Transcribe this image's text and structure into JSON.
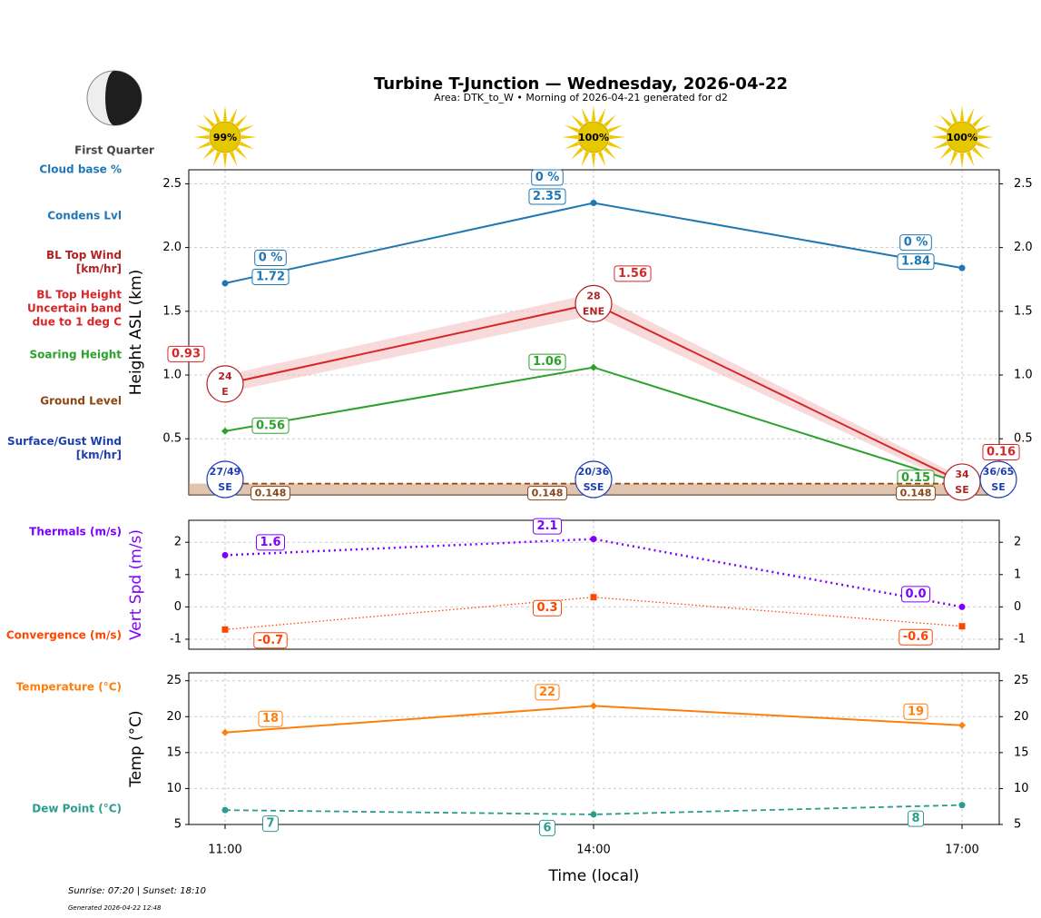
{
  "title": "Turbine T-Junction — Wednesday, 2026-04-22",
  "subtitle": "Area: DTK_to_W • Morning of 2026-04-21 generated for d2",
  "moon_phase": "First Quarter",
  "sun_percent": {
    "values": [
      99,
      100,
      100
    ],
    "value_labels": [
      "99%",
      "100%",
      "100%"
    ]
  },
  "footer": [
    "Sunrise: 07:20 | Sunset: 18:10",
    "Generated 2026-04-22 12:48"
  ],
  "chart_data": [
    {
      "type": "line",
      "y_label": "Height ASL (km)",
      "ylim": [
        0.06,
        2.61
      ],
      "yticks": [
        0.5,
        {
          "value": 1,
          "label": "1.0"
        },
        1.5,
        {
          "value": 2,
          "label": "2.0"
        },
        2.5
      ],
      "grid": true,
      "series": [
        {
          "name": "Cloud base %",
          "style": "labels",
          "color": "#1f77b4",
          "values": [
            0,
            0,
            0
          ],
          "value_labels": [
            "0 %",
            "0 %",
            "0 %"
          ]
        },
        {
          "name": "Condens Lvl",
          "style": "line",
          "linestyle": "solid",
          "marker": "o",
          "color": "#1f77b4",
          "values": [
            1.72,
            2.35,
            1.84
          ]
        },
        {
          "name": "BL Top Wind\n[km/hr]",
          "style": "wind",
          "color": "#b22222",
          "values": [
            24,
            28,
            34
          ],
          "directions": [
            "E",
            "ENE",
            "SE"
          ]
        },
        {
          "name": "BL Top Height\nUncertain band\ndue to 1 deg C",
          "style": "line",
          "linestyle": "solid",
          "marker": "none",
          "color": "#d62728",
          "values": [
            0.93,
            1.56,
            0.16
          ],
          "band_lower": [
            0.86,
            1.47,
            0.12
          ],
          "band_upper": [
            1.0,
            1.64,
            0.2
          ]
        },
        {
          "name": "Soaring Height",
          "style": "line",
          "linestyle": "solid",
          "marker": "D",
          "color": "#2ca02c",
          "values": [
            0.56,
            1.06,
            0.15
          ]
        },
        {
          "name": "Ground Level",
          "style": "ground",
          "linestyle": "dashed",
          "marker": "none",
          "color": "#8b4513",
          "values": [
            0.148,
            0.148,
            0.148
          ]
        },
        {
          "name": "Surface/Gust Wind\n[km/hr]",
          "style": "wind",
          "color": "#1f3fb0",
          "values": [
            27,
            20,
            36
          ],
          "gusts": [
            49,
            36,
            65
          ],
          "value_labels": [
            "27/49",
            "20/36",
            "36/65"
          ],
          "directions": [
            "SE",
            "SSE",
            "SE"
          ]
        }
      ]
    },
    {
      "type": "line",
      "y_label": "Vert Spd (m/s)",
      "y_label_color": "#7f00ff",
      "ylim": [
        -1.31,
        2.68
      ],
      "yticks": [
        -1,
        0,
        1,
        2
      ],
      "grid": true,
      "series": [
        {
          "name": "Thermals (m/s)",
          "style": "line",
          "linestyle": "dotted",
          "marker": "o",
          "color": "#7f00ff",
          "values": [
            1.6,
            2.1,
            0
          ],
          "value_labels": [
            "1.6",
            "2.1",
            "0.0"
          ]
        },
        {
          "name": "Convergence (m/s)",
          "style": "line",
          "linestyle": "fine-dotted",
          "marker": "s",
          "color": "#ff4500",
          "values": [
            -0.7,
            0.3,
            -0.6
          ]
        }
      ]
    },
    {
      "type": "line",
      "y_label": "Temp (°C)",
      "x_label": "Time (local)",
      "categories": [
        "11:00",
        "14:00",
        "17:00"
      ],
      "ylim": [
        5,
        26.1
      ],
      "yticks": [
        5,
        10,
        15,
        20,
        25
      ],
      "grid": true,
      "series": [
        {
          "name": "Temperature (°C)",
          "style": "line",
          "linestyle": "solid",
          "marker": "D",
          "color": "#ff7f0e",
          "values": [
            17.8,
            21.5,
            18.8
          ],
          "value_labels": [
            "18",
            "22",
            "19"
          ]
        },
        {
          "name": "Dew Point (°C)",
          "style": "line",
          "linestyle": "dashed",
          "marker": "o",
          "color": "#2a9d8f",
          "values": [
            7.0,
            6.4,
            7.7
          ],
          "value_labels": [
            "7",
            "6",
            "8"
          ]
        }
      ]
    }
  ]
}
